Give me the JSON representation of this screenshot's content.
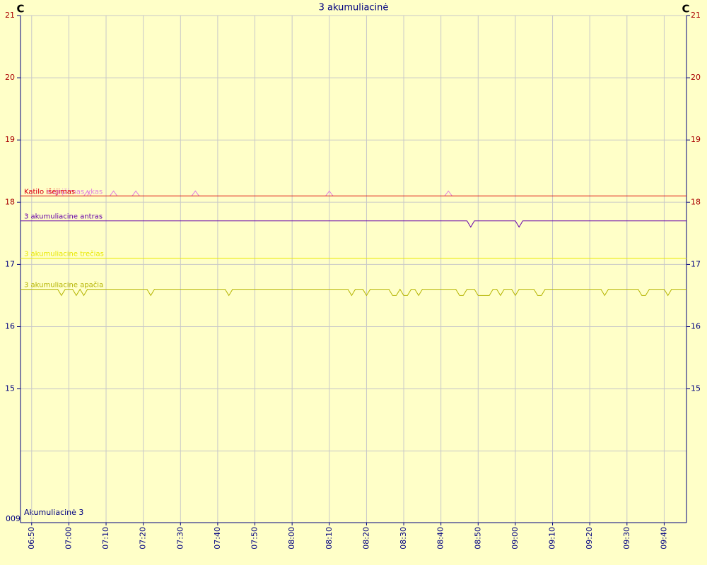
{
  "chart_data": {
    "type": "line",
    "title": "3 akumuliacinė",
    "y_unit_left": "C",
    "y_unit_right": "C",
    "axis_group_label": "Akumuliacinė 3",
    "axis_bottom_label": "009",
    "xlim": [
      "06:47",
      "09:46"
    ],
    "xticks": [
      "06:50",
      "07:00",
      "07:10",
      "07:20",
      "07:30",
      "07:40",
      "07:50",
      "08:00",
      "08:10",
      "08:20",
      "08:30",
      "08:40",
      "08:50",
      "09:00",
      "09:10",
      "09:20",
      "09:30",
      "09:40"
    ],
    "ylim": [
      12.85,
      21
    ],
    "yticks": [
      15,
      16,
      17,
      18,
      19,
      20,
      21
    ],
    "ytick_label_colors": [
      "#000080",
      "#000080",
      "#000080",
      "#aa0000",
      "#aa0000",
      "#aa0000",
      "#aa0000"
    ],
    "unlabeled_gridlines": [
      14
    ],
    "grid": true,
    "series": [
      {
        "name": "Katilo sugrįžimas ykas",
        "color": "#e080e0",
        "x": [
          "06:47",
          "07:04",
          "07:05",
          "07:06",
          "07:11",
          "07:12",
          "07:13",
          "07:17",
          "07:18",
          "07:19",
          "07:33",
          "07:34",
          "07:35",
          "08:09",
          "08:10",
          "08:11",
          "08:41",
          "08:42",
          "08:43",
          "09:46"
        ],
        "values": [
          18.1,
          18.1,
          18.18,
          18.1,
          18.1,
          18.18,
          18.1,
          18.1,
          18.18,
          18.1,
          18.1,
          18.18,
          18.1,
          18.1,
          18.18,
          18.1,
          18.1,
          18.18,
          18.1,
          18.1
        ]
      },
      {
        "name": "Katilo išėjimas",
        "color": "#dd0000",
        "x": [
          "06:47",
          "09:46"
        ],
        "values": [
          18.1,
          18.1
        ]
      },
      {
        "name": "3 akumuliacine antras",
        "color": "#6600aa",
        "x": [
          "06:47",
          "08:47",
          "08:48",
          "08:49",
          "09:00",
          "09:01",
          "09:02",
          "09:46"
        ],
        "values": [
          17.7,
          17.7,
          17.6,
          17.7,
          17.7,
          17.6,
          17.7,
          17.7
        ]
      },
      {
        "name": "3 akumuliacine trečias",
        "color": "#e8e800",
        "x": [
          "06:47",
          "09:46"
        ],
        "values": [
          17.1,
          17.1
        ]
      },
      {
        "name": "3 akumuliacine apačia",
        "color": "#b4b400",
        "x": [
          "06:47",
          "06:57",
          "06:58",
          "06:59",
          "07:01",
          "07:02",
          "07:03",
          "07:04",
          "07:05",
          "07:21",
          "07:22",
          "07:23",
          "07:42",
          "07:43",
          "07:44",
          "08:15",
          "08:16",
          "08:17",
          "08:19",
          "08:20",
          "08:21",
          "08:26",
          "08:27",
          "08:28",
          "08:29",
          "08:30",
          "08:31",
          "08:32",
          "08:33",
          "08:34",
          "08:35",
          "08:44",
          "08:45",
          "08:46",
          "08:47",
          "08:49",
          "08:50",
          "08:53",
          "08:54",
          "08:55",
          "08:56",
          "08:57",
          "08:58",
          "08:59",
          "09:00",
          "09:01",
          "09:05",
          "09:06",
          "09:07",
          "09:08",
          "09:23",
          "09:24",
          "09:25",
          "09:33",
          "09:34",
          "09:35",
          "09:36",
          "09:40",
          "09:41",
          "09:42",
          "09:46"
        ],
        "values": [
          16.6,
          16.6,
          16.5,
          16.6,
          16.6,
          16.5,
          16.6,
          16.5,
          16.6,
          16.6,
          16.5,
          16.6,
          16.6,
          16.5,
          16.6,
          16.6,
          16.5,
          16.6,
          16.6,
          16.5,
          16.6,
          16.6,
          16.5,
          16.5,
          16.6,
          16.5,
          16.5,
          16.6,
          16.6,
          16.5,
          16.6,
          16.6,
          16.5,
          16.5,
          16.6,
          16.6,
          16.5,
          16.5,
          16.6,
          16.6,
          16.5,
          16.6,
          16.6,
          16.6,
          16.5,
          16.6,
          16.6,
          16.5,
          16.5,
          16.6,
          16.6,
          16.5,
          16.6,
          16.6,
          16.5,
          16.5,
          16.6,
          16.6,
          16.5,
          16.6,
          16.6
        ]
      }
    ]
  }
}
